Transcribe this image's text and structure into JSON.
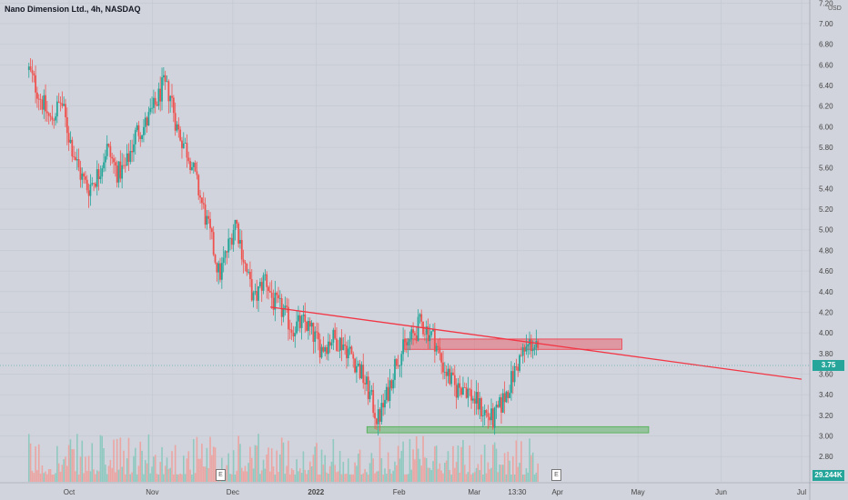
{
  "header": {
    "title": "Nano Dimension Ltd., 4h, NASDAQ",
    "currency": "USD"
  },
  "badges": {
    "price": "3.75",
    "volume": "29.244K",
    "earnings_1": "E",
    "earnings_2": "E"
  },
  "chart_data": {
    "type": "candlestick",
    "title": "Nano Dimension Ltd., 4h, NASDAQ",
    "y_tick_labels": [
      "7.20",
      "7.00",
      "6.80",
      "6.60",
      "6.40",
      "6.20",
      "6.00",
      "5.80",
      "5.60",
      "5.40",
      "5.20",
      "5.00",
      "4.80",
      "4.60",
      "4.40",
      "4.20",
      "4.00",
      "3.80",
      "3.60",
      "3.40",
      "3.20",
      "3.00",
      "2.80"
    ],
    "x_tick_labels": [
      "Oct",
      "Nov",
      "Dec",
      "2022",
      "Feb",
      "Mar",
      "13:30",
      "Apr",
      "May",
      "Jun",
      "Jul"
    ],
    "ylim": [
      2.74,
      7.22
    ],
    "last_price": 3.75,
    "last_volume": "29.244K",
    "price_path": [
      [
        "2021-09-16",
        6.55
      ],
      [
        "2021-09-20",
        6.3
      ],
      [
        "2021-09-24",
        6.05
      ],
      [
        "2021-09-28",
        6.25
      ],
      [
        "2021-10-01",
        5.9
      ],
      [
        "2021-10-05",
        5.55
      ],
      [
        "2021-10-08",
        5.4
      ],
      [
        "2021-10-12",
        5.55
      ],
      [
        "2021-10-15",
        5.8
      ],
      [
        "2021-10-19",
        5.55
      ],
      [
        "2021-10-22",
        5.6
      ],
      [
        "2021-10-26",
        5.95
      ],
      [
        "2021-10-29",
        6.0
      ],
      [
        "2021-11-02",
        6.2
      ],
      [
        "2021-11-05",
        6.4
      ],
      [
        "2021-11-08",
        6.3
      ],
      [
        "2021-11-10",
        6.0
      ],
      [
        "2021-11-15",
        5.7
      ],
      [
        "2021-11-19",
        5.3
      ],
      [
        "2021-11-23",
        4.9
      ],
      [
        "2021-11-26",
        4.55
      ],
      [
        "2021-11-30",
        4.9
      ],
      [
        "2021-12-02",
        5.1
      ],
      [
        "2021-12-06",
        4.6
      ],
      [
        "2021-12-09",
        4.3
      ],
      [
        "2021-12-13",
        4.55
      ],
      [
        "2021-12-16",
        4.3
      ],
      [
        "2021-12-20",
        4.2
      ],
      [
        "2021-12-23",
        4.05
      ],
      [
        "2021-12-28",
        4.1
      ],
      [
        "2022-01-03",
        3.85
      ],
      [
        "2022-01-07",
        3.95
      ],
      [
        "2022-01-11",
        3.9
      ],
      [
        "2022-01-14",
        3.8
      ],
      [
        "2022-01-18",
        3.6
      ],
      [
        "2022-01-21",
        3.4
      ],
      [
        "2022-01-24",
        3.15
      ],
      [
        "2022-01-27",
        3.35
      ],
      [
        "2022-01-31",
        3.75
      ],
      [
        "2022-02-03",
        3.85
      ],
      [
        "2022-02-07",
        4.0
      ],
      [
        "2022-02-09",
        4.1
      ],
      [
        "2022-02-14",
        3.95
      ],
      [
        "2022-02-17",
        3.7
      ],
      [
        "2022-02-22",
        3.45
      ],
      [
        "2022-02-25",
        3.5
      ],
      [
        "2022-03-01",
        3.35
      ],
      [
        "2022-03-04",
        3.25
      ],
      [
        "2022-03-08",
        3.15
      ],
      [
        "2022-03-11",
        3.3
      ],
      [
        "2022-03-15",
        3.55
      ],
      [
        "2022-03-18",
        3.75
      ],
      [
        "2022-03-22",
        3.9
      ],
      [
        "2022-03-24",
        3.85
      ],
      [
        "2022-03-25",
        3.75
      ]
    ],
    "annotations": [
      {
        "type": "trendline",
        "from": [
          "2021-12-15",
          4.25
        ],
        "to": [
          "2022-07-01",
          3.55
        ],
        "color": "#f23645"
      },
      {
        "type": "zone",
        "x": [
          "2022-02-03",
          "2022-04-25"
        ],
        "y": [
          3.84,
          3.94
        ],
        "color": "#f23645"
      },
      {
        "type": "zone",
        "x": [
          "2022-01-20",
          "2022-05-05"
        ],
        "y": [
          3.03,
          3.09
        ],
        "color": "#4caf50"
      }
    ],
    "grid": true,
    "colors": {
      "up": "#26a69a",
      "down": "#ef5350",
      "background": "#d1d4dc",
      "trendline": "#f23645"
    }
  }
}
